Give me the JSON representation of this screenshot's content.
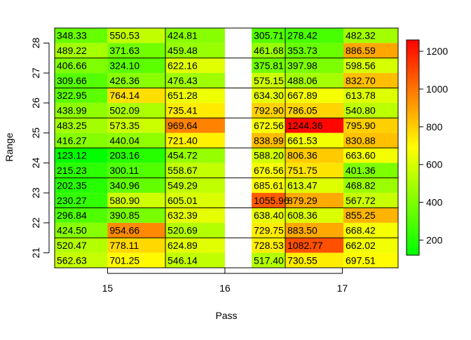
{
  "chart_data": {
    "type": "heatmap",
    "xlabel": "Pass",
    "ylabel": "Range",
    "x_ticks": [
      "15",
      "16",
      "17"
    ],
    "y_ticks": [
      "21",
      "22",
      "23",
      "24",
      "25",
      "26",
      "27",
      "28"
    ],
    "columns_per_pass": 2,
    "rows_per_range": 2,
    "colorbar": {
      "min": 120,
      "max": 1260,
      "ticks": [
        "200",
        "400",
        "600",
        "800",
        "1000",
        "1200"
      ],
      "tick_values": [
        200,
        400,
        600,
        800,
        1000,
        1200
      ],
      "colors": [
        "#00ff00",
        "#ffff00",
        "#ff0000"
      ]
    },
    "cells": [
      {
        "range": 28,
        "sub": "upper",
        "values": [
          348.33,
          550.53,
          424.81,
          null,
          305.71,
          278.42,
          482.32
        ],
        "labels": [
          "348.33",
          "550.53",
          "424.81",
          "",
          "305.71",
          "278.42",
          "482.32"
        ]
      },
      {
        "range": 28,
        "sub": "lower",
        "values": [
          489.22,
          371.63,
          459.48,
          null,
          461.68,
          353.73,
          886.59
        ],
        "labels": [
          "489.22",
          "371.63",
          "459.48",
          "",
          "461.68",
          "353.73",
          "886.59"
        ]
      },
      {
        "range": 27,
        "sub": "upper",
        "values": [
          406.66,
          324.1,
          622.16,
          null,
          375.81,
          397.98,
          598.56
        ],
        "labels": [
          "406.66",
          "324.10",
          "622.16",
          "",
          "375.81",
          "397.98",
          "598.56"
        ]
      },
      {
        "range": 27,
        "sub": "lower",
        "values": [
          309.66,
          426.36,
          476.43,
          null,
          575.15,
          488.06,
          832.7
        ],
        "labels": [
          "309.66",
          "426.36",
          "476.43",
          "",
          "575.15",
          "488.06",
          "832.70"
        ]
      },
      {
        "range": 26,
        "sub": "upper",
        "values": [
          322.95,
          764.14,
          651.28,
          null,
          634.3,
          667.89,
          613.78
        ],
        "labels": [
          "322.95",
          "764.14",
          "651.28",
          "",
          "634.30",
          "667.89",
          "613.78"
        ]
      },
      {
        "range": 26,
        "sub": "lower",
        "values": [
          438.99,
          502.09,
          735.41,
          null,
          792.9,
          786.05,
          540.8
        ],
        "labels": [
          "438.99",
          "502.09",
          "735.41",
          "",
          "792.90",
          "786.05",
          "540.80"
        ]
      },
      {
        "range": 25,
        "sub": "upper",
        "values": [
          483.25,
          573.35,
          969.64,
          null,
          672.56,
          1244.36,
          795.9
        ],
        "labels": [
          "483.25",
          "573.35",
          "969.64",
          "",
          "672.56",
          "1244.36",
          "795.90"
        ]
      },
      {
        "range": 25,
        "sub": "lower",
        "values": [
          416.27,
          440.04,
          721.4,
          null,
          838.99,
          661.53,
          830.88
        ],
        "labels": [
          "416.27",
          "440.04",
          "721.40",
          "",
          "838.99",
          "661.53",
          "830.88"
        ]
      },
      {
        "range": 24,
        "sub": "upper",
        "values": [
          123.12,
          203.16,
          454.72,
          null,
          588.2,
          806.36,
          663.6
        ],
        "labels": [
          "123.12",
          "203.16",
          "454.72",
          "",
          "588.20",
          "806.36",
          "663.60"
        ]
      },
      {
        "range": 24,
        "sub": "lower",
        "values": [
          215.23,
          300.11,
          558.67,
          null,
          676.56,
          751.75,
          401.36
        ],
        "labels": [
          "215.23",
          "300.11",
          "558.67",
          "",
          "676.56",
          "751.75",
          "401.36"
        ]
      },
      {
        "range": 23,
        "sub": "upper",
        "values": [
          202.35,
          340.96,
          549.29,
          null,
          685.61,
          613.47,
          468.82
        ],
        "labels": [
          "202.35",
          "340.96",
          "549.29",
          "",
          "685.61",
          "613.47",
          "468.82"
        ]
      },
      {
        "range": 23,
        "sub": "lower",
        "values": [
          230.27,
          580.9,
          605.01,
          null,
          1055.96,
          879.29,
          567.72
        ],
        "labels": [
          "230.27",
          "580.90",
          "605.01",
          "",
          "1055.96",
          "879.29",
          "567.72"
        ]
      },
      {
        "range": 22,
        "sub": "upper",
        "values": [
          296.84,
          390.85,
          632.39,
          null,
          638.4,
          608.36,
          855.25
        ],
        "labels": [
          "296.84",
          "390.85",
          "632.39",
          "",
          "638.40",
          "608.36",
          "855.25"
        ]
      },
      {
        "range": 22,
        "sub": "lower",
        "values": [
          424.5,
          954.66,
          520.69,
          null,
          729.75,
          883.5,
          668.42
        ],
        "labels": [
          "424.50",
          "954.66",
          "520.69",
          "",
          "729.75",
          "883.50",
          "668.42"
        ]
      },
      {
        "range": 21,
        "sub": "upper",
        "values": [
          520.47,
          778.11,
          624.89,
          null,
          728.53,
          1082.77,
          662.02
        ],
        "labels": [
          "520.47",
          "778.11",
          "624.89",
          "",
          "728.53",
          "1082.77",
          "662.02"
        ]
      },
      {
        "range": 21,
        "sub": "lower",
        "values": [
          562.63,
          701.25,
          546.14,
          null,
          517.4,
          730.55,
          697.51
        ],
        "labels": [
          "562.63",
          "701.25",
          "546.14",
          "",
          "517.40",
          "730.55",
          "697.51"
        ]
      }
    ]
  }
}
